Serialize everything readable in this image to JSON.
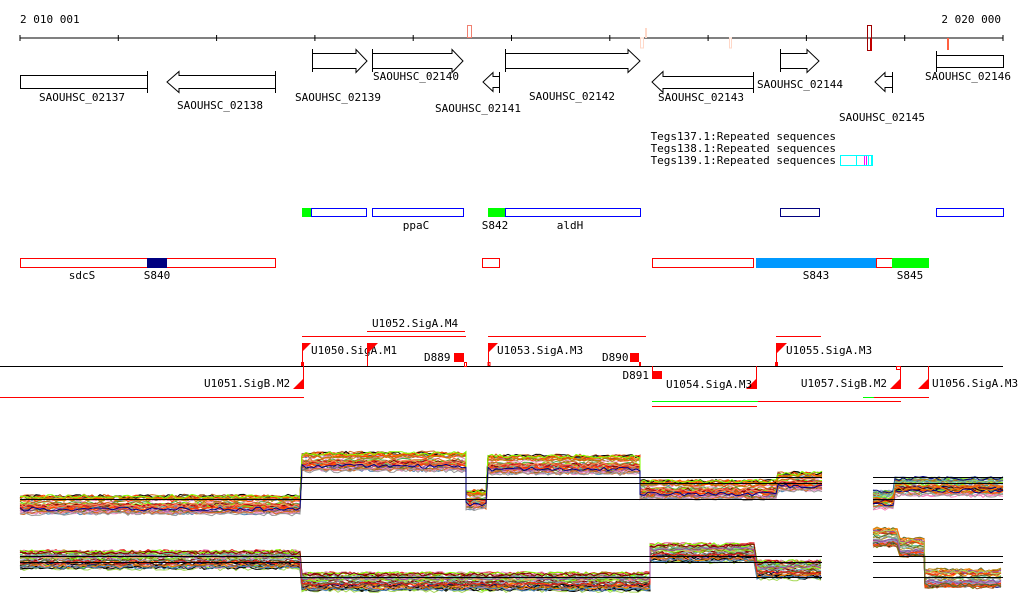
{
  "ruler": {
    "start_label": "2 010 001",
    "end_label": "2 020 000"
  },
  "genes": [
    {
      "name": "SAOUHSC_02137",
      "strand": "none"
    },
    {
      "name": "SAOUHSC_02138",
      "strand": "-"
    },
    {
      "name": "SAOUHSC_02139",
      "strand": "+"
    },
    {
      "name": "SAOUHSC_02140",
      "strand": "+"
    },
    {
      "name": "SAOUHSC_02141",
      "strand": "-"
    },
    {
      "name": "SAOUHSC_02142",
      "strand": "+"
    },
    {
      "name": "SAOUHSC_02143",
      "strand": "-"
    },
    {
      "name": "SAOUHSC_02144",
      "strand": "+"
    },
    {
      "name": "SAOUHSC_02145",
      "strand": "-"
    },
    {
      "name": "SAOUHSC_02146",
      "strand": "none"
    }
  ],
  "repeats": {
    "labels": [
      "Tegs137.1:Repeated sequences",
      "Tegs138.1:Repeated sequences",
      "Tegs139.1:Repeated sequences"
    ],
    "colors": [
      "#00ffff",
      "#ff00ff"
    ]
  },
  "annotation_labels": {
    "ppaC": "ppaC",
    "S842": "S842",
    "aldH": "aldH",
    "sdcS": "sdcS",
    "S840": "S840",
    "S843": "S843",
    "S845": "S845"
  },
  "promoters": {
    "u1050": "U1050.SigA.M1",
    "u1052": "U1052.SigA.M4",
    "u1053": "U1053.SigA.M3",
    "u1055": "U1055.SigA.M3",
    "u1051": "U1051.SigB.M2",
    "u1054": "U1054.SigA.M3",
    "u1056": "U1056.SigA.M3",
    "u1057": "U1057.SigB.M2",
    "d889": "D889",
    "d890": "D890",
    "d891": "D891"
  },
  "colors": {
    "gene": "#000000",
    "promoter": "#ff0000",
    "blue_box": "#0000ff",
    "green": "#00ff00",
    "navy": "#000080",
    "sky": "#0099ff"
  }
}
